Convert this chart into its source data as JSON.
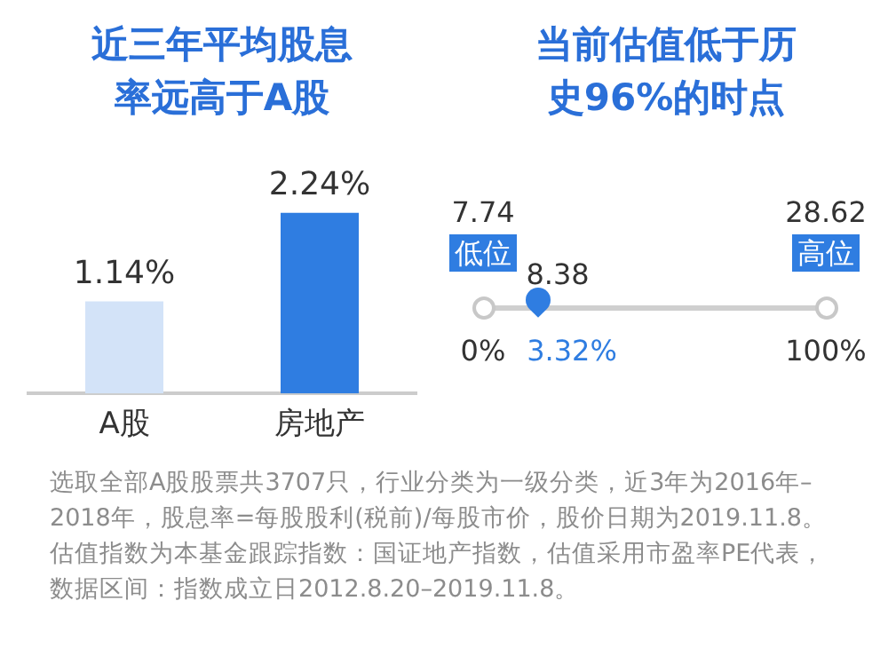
{
  "chart_data": [
    {
      "type": "bar",
      "title": "近三年平均股息率远高于A股",
      "categories": [
        "A股",
        "房地产"
      ],
      "values": [
        1.14,
        2.24
      ],
      "colors": [
        "#d3e3f8",
        "#2f7de1"
      ],
      "value_labels": [
        "1.14%",
        "2.24%"
      ],
      "tick_labels": "x"
    },
    {
      "type": "other",
      "title": "当前估值低于历史96%的时点",
      "annotations": [
        "7.74",
        "低位",
        "28.62",
        "高位",
        "8.38",
        "3.32%",
        "0%",
        "100%"
      ]
    },
    {
      "type": "other",
      "annotations": [
        "选取全部A股股票共3707只，行业分类为一级分类，近3年为2016年–2018年，股息率=每股股利(税前)/每股市价，股价日期为2019.11.8。估值指数为本基金跟踪指数：国证地产指数，估值采用市盈率PE代表，数据区间：指数成立日2012.8.20–2019.11.8。"
      ]
    }
  ]
}
